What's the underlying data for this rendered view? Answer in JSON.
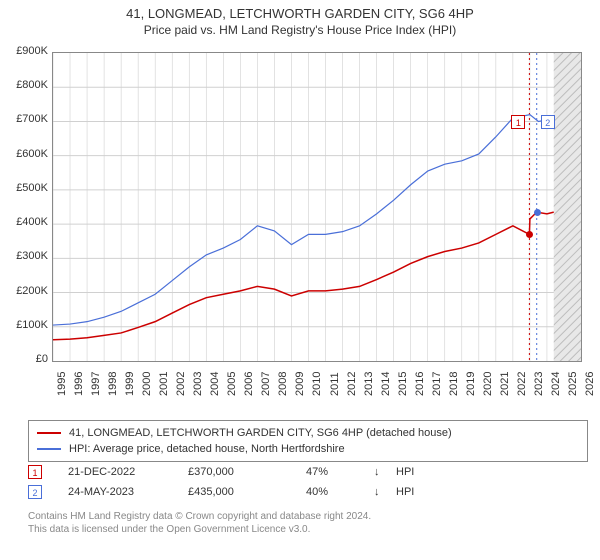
{
  "title": "41, LONGMEAD, LETCHWORTH GARDEN CITY, SG6 4HP",
  "subtitle": "Price paid vs. HM Land Registry's House Price Index (HPI)",
  "chart": {
    "type": "line",
    "background_color": "#ffffff",
    "grid_color": "#d0d0d0",
    "border_color": "#888888",
    "x": {
      "min": 1995,
      "max": 2026,
      "ticks": [
        1995,
        1996,
        1997,
        1998,
        1999,
        2000,
        2001,
        2002,
        2003,
        2004,
        2005,
        2006,
        2007,
        2008,
        2009,
        2010,
        2011,
        2012,
        2013,
        2014,
        2015,
        2016,
        2017,
        2018,
        2019,
        2020,
        2021,
        2022,
        2023,
        2024,
        2025,
        2026
      ],
      "label_fontsize": 11
    },
    "y": {
      "min": 0,
      "max": 900000,
      "ticks": [
        0,
        100000,
        200000,
        300000,
        400000,
        500000,
        600000,
        700000,
        800000,
        900000
      ],
      "tick_labels": [
        "£0",
        "£100K",
        "£200K",
        "£300K",
        "£400K",
        "£500K",
        "£600K",
        "£700K",
        "£800K",
        "£900K"
      ],
      "label_fontsize": 11
    },
    "future_band": {
      "from": 2024.4,
      "to": 2026,
      "fill": "#d8d8d8",
      "hatch": true
    },
    "vlines": [
      {
        "x": 2022.97,
        "color": "#cc0000",
        "dash": true
      },
      {
        "x": 2023.4,
        "color": "#4a6fd8",
        "dash": true
      }
    ],
    "series": [
      {
        "name": "41, LONGMEAD, LETCHWORTH GARDEN CITY, SG6 4HP (detached house)",
        "color": "#cc0000",
        "width": 1.5,
        "points": [
          [
            1995,
            62000
          ],
          [
            1996,
            64000
          ],
          [
            1997,
            68000
          ],
          [
            1998,
            75000
          ],
          [
            1999,
            82000
          ],
          [
            2000,
            98000
          ],
          [
            2001,
            115000
          ],
          [
            2002,
            140000
          ],
          [
            2003,
            165000
          ],
          [
            2004,
            185000
          ],
          [
            2005,
            195000
          ],
          [
            2006,
            205000
          ],
          [
            2007,
            218000
          ],
          [
            2008,
            210000
          ],
          [
            2009,
            190000
          ],
          [
            2010,
            205000
          ],
          [
            2011,
            205000
          ],
          [
            2012,
            210000
          ],
          [
            2013,
            218000
          ],
          [
            2014,
            238000
          ],
          [
            2015,
            260000
          ],
          [
            2016,
            285000
          ],
          [
            2017,
            305000
          ],
          [
            2018,
            320000
          ],
          [
            2019,
            330000
          ],
          [
            2020,
            345000
          ],
          [
            2021,
            370000
          ],
          [
            2022,
            395000
          ],
          [
            2022.97,
            370000
          ],
          [
            2023,
            415000
          ],
          [
            2023.4,
            435000
          ],
          [
            2024,
            430000
          ],
          [
            2024.4,
            435000
          ]
        ]
      },
      {
        "name": "HPI: Average price, detached house, North Hertfordshire",
        "color": "#4a6fd8",
        "width": 1.2,
        "points": [
          [
            1995,
            105000
          ],
          [
            1996,
            108000
          ],
          [
            1997,
            115000
          ],
          [
            1998,
            128000
          ],
          [
            1999,
            145000
          ],
          [
            2000,
            170000
          ],
          [
            2001,
            195000
          ],
          [
            2002,
            235000
          ],
          [
            2003,
            275000
          ],
          [
            2004,
            310000
          ],
          [
            2005,
            330000
          ],
          [
            2006,
            355000
          ],
          [
            2007,
            395000
          ],
          [
            2008,
            380000
          ],
          [
            2009,
            340000
          ],
          [
            2010,
            370000
          ],
          [
            2011,
            370000
          ],
          [
            2012,
            378000
          ],
          [
            2013,
            395000
          ],
          [
            2014,
            430000
          ],
          [
            2015,
            470000
          ],
          [
            2016,
            515000
          ],
          [
            2017,
            555000
          ],
          [
            2018,
            575000
          ],
          [
            2019,
            585000
          ],
          [
            2020,
            605000
          ],
          [
            2021,
            655000
          ],
          [
            2022,
            710000
          ],
          [
            2023,
            720000
          ],
          [
            2023.5,
            700000
          ],
          [
            2024,
            705000
          ],
          [
            2024.4,
            700000
          ]
        ]
      }
    ],
    "markers": [
      {
        "n": 1,
        "x": 2022.97,
        "y": 370000,
        "color": "#cc0000",
        "label_pos": "right",
        "label_y": 720000
      },
      {
        "n": 2,
        "x": 2023.4,
        "y": 435000,
        "color": "#4a6fd8",
        "label_pos": "right",
        "label_y": 720000
      }
    ]
  },
  "legend": {
    "items": [
      {
        "color": "#cc0000",
        "label": "41, LONGMEAD, LETCHWORTH GARDEN CITY, SG6 4HP (detached house)"
      },
      {
        "color": "#4a6fd8",
        "label": "HPI: Average price, detached house, North Hertfordshire"
      }
    ]
  },
  "transactions": [
    {
      "n": "1",
      "color": "#cc0000",
      "date": "21-DEC-2022",
      "price": "£370,000",
      "pct": "47%",
      "arrow": "↓",
      "tag": "HPI"
    },
    {
      "n": "2",
      "color": "#4a6fd8",
      "date": "24-MAY-2023",
      "price": "£435,000",
      "pct": "40%",
      "arrow": "↓",
      "tag": "HPI"
    }
  ],
  "footer": {
    "line1": "Contains HM Land Registry data © Crown copyright and database right 2024.",
    "line2": "This data is licensed under the Open Government Licence v3.0."
  }
}
